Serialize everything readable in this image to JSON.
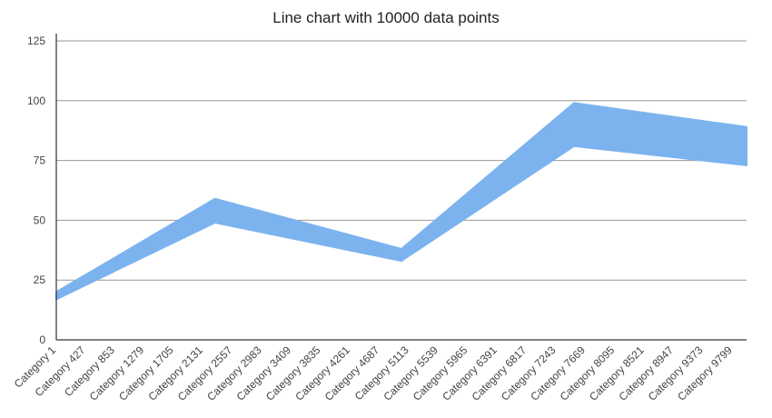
{
  "chart_data": {
    "type": "line",
    "title": "Line chart with 10000 data points",
    "xlabel": "",
    "ylabel": "",
    "ylim": [
      0,
      125
    ],
    "yticks": [
      0,
      25,
      50,
      75,
      100,
      125
    ],
    "grid": true,
    "legend": "none",
    "n_points": 10000,
    "x_tick_labels": [
      "Category 1",
      "Category 427",
      "Category 853",
      "Category 1279",
      "Category 1705",
      "Category 2131",
      "Category 2557",
      "Category 2983",
      "Category 3409",
      "Category 3835",
      "Category 4261",
      "Category 4687",
      "Category 5113",
      "Category 5539",
      "Category 5965",
      "Category 6391",
      "Category 6817",
      "Category 7243",
      "Category 7669",
      "Category 8095",
      "Category 8521",
      "Category 8947",
      "Category 9373",
      "Category 9799"
    ],
    "series": [
      {
        "color": "#7cb3ef",
        "x": [
          1,
          2300,
          5000,
          7500,
          10000
        ],
        "lower": [
          17,
          49,
          33,
          81,
          73
        ],
        "upper": [
          20,
          59,
          38,
          99,
          89
        ]
      }
    ]
  }
}
